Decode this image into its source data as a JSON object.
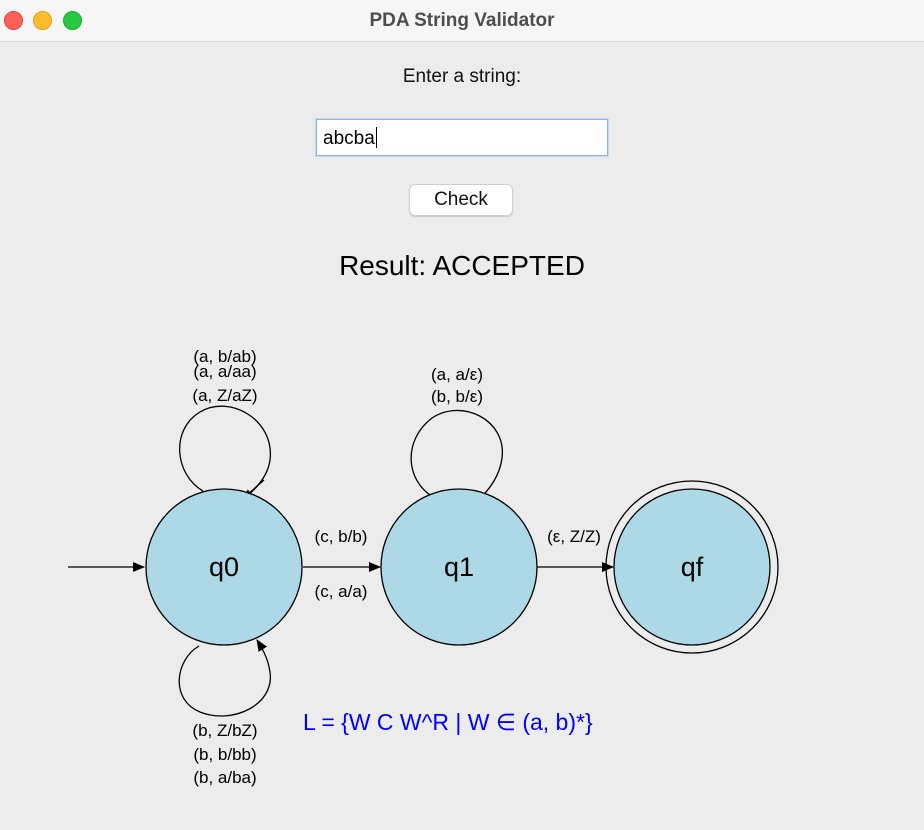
{
  "window": {
    "title": "PDA String Validator"
  },
  "form": {
    "prompt": "Enter a string:",
    "input_value": "abcba",
    "check_label": "Check"
  },
  "result": {
    "text": "Result: ACCEPTED"
  },
  "diagram": {
    "states": {
      "q0": "q0",
      "q1": "q1",
      "qf": "qf"
    },
    "q0_top_loop": [
      "(a, b/ab)",
      "(a, a/aa)",
      "(a, Z/aZ)"
    ],
    "q0_bottom_loop": [
      "(b, Z/bZ)",
      "(b, b/bb)",
      "(b, a/ba)"
    ],
    "q1_loop": [
      "(a, a/ε)",
      "(b, b/ε)"
    ],
    "q0_q1": [
      "(c, b/b)",
      "(c, a/a)"
    ],
    "q1_qf": "(ε, Z/Z)",
    "language": "L = {W C W^R | W ∈ (a, b)*}",
    "colors": {
      "state_fill": "#add8e6",
      "language_text": "#0000ff"
    }
  }
}
